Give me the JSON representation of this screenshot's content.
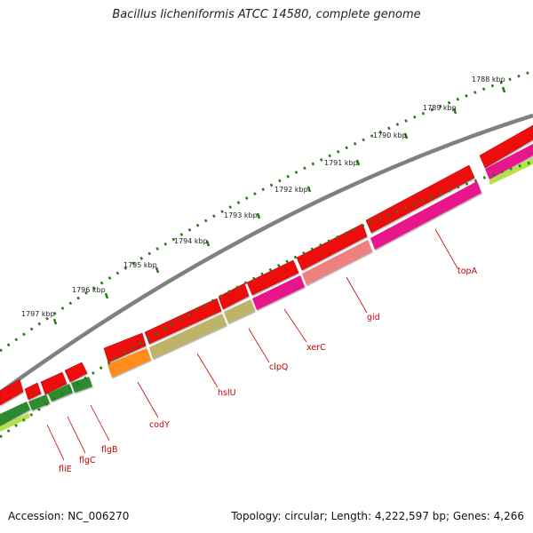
{
  "title": "Bacillus licheniformis ATCC 14580, complete genome",
  "footer": {
    "accession": "Accession: NC_006270",
    "summary": "Topology: circular; Length: 4,222,597 bp; Genes: 4,266"
  },
  "scale": {
    "unit": "kbp",
    "labels": [
      "1788 kbp",
      "1789 kbp",
      "1790 kbp",
      "1791 kbp",
      "1792 kbp",
      "1793 kbp",
      "1794 kbp",
      "1795 kbp",
      "1796 kbp",
      "1797 kbp"
    ]
  },
  "colors": {
    "backbone": "#888888",
    "forward_cds": "#ff1a1a",
    "label": "#cc0000",
    "tick": "#2a7a1a"
  },
  "genes": [
    {
      "name": "topA"
    },
    {
      "name": "gid"
    },
    {
      "name": "xerC"
    },
    {
      "name": "clpQ"
    },
    {
      "name": "hslU"
    },
    {
      "name": "codY"
    },
    {
      "name": "flgB"
    },
    {
      "name": "flgC"
    },
    {
      "name": "fliE"
    }
  ]
}
